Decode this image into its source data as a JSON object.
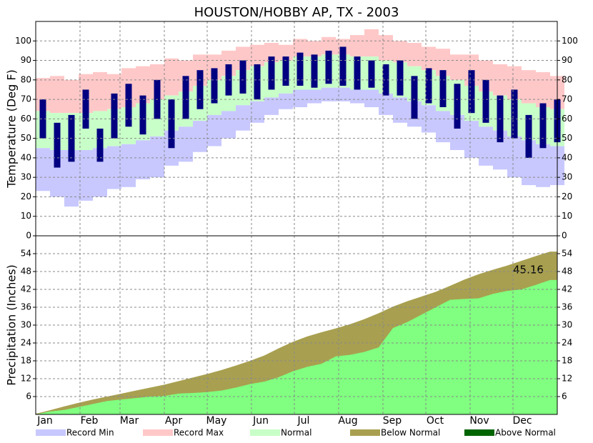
{
  "chart_data": [
    {
      "type": "range-bar",
      "title": "HOUSTON/HOBBY AP, TX - 2003",
      "ylabel": "Temperature (Deg F)",
      "x": [
        1,
        11,
        21,
        31,
        41,
        51,
        61,
        71,
        81,
        91,
        101,
        111,
        121,
        131,
        141,
        151,
        161,
        171,
        181,
        191,
        201,
        211,
        221,
        231,
        241,
        251,
        261,
        271,
        281,
        291,
        301,
        311,
        321,
        331,
        341,
        351,
        361
      ],
      "xlim": [
        1,
        366
      ],
      "xticks": [
        {
          "value": 1,
          "label": "Jan"
        },
        {
          "value": 32,
          "label": "Feb"
        },
        {
          "value": 60,
          "label": "Mar"
        },
        {
          "value": 91,
          "label": "Apr"
        },
        {
          "value": 121,
          "label": "May"
        },
        {
          "value": 152,
          "label": "Jun"
        },
        {
          "value": 182,
          "label": "Jul"
        },
        {
          "value": 213,
          "label": "Aug"
        },
        {
          "value": 244,
          "label": "Sep"
        },
        {
          "value": 274,
          "label": "Oct"
        },
        {
          "value": 305,
          "label": "Nov"
        },
        {
          "value": 335,
          "label": "Dec"
        }
      ],
      "ylim": [
        0,
        110
      ],
      "yticks": [
        0,
        10,
        20,
        30,
        40,
        50,
        60,
        70,
        80,
        90,
        100
      ],
      "grid": true,
      "series": [
        {
          "name": "Record Max",
          "color": "#ffc8c8",
          "low": [
            64,
            63,
            63,
            63,
            64,
            65,
            66,
            68,
            70,
            72,
            74,
            77,
            80,
            82,
            85,
            87,
            89,
            90,
            92,
            92,
            93,
            93,
            92,
            92,
            90,
            89,
            87,
            85,
            82,
            80,
            77,
            74,
            72,
            70,
            68,
            66,
            65
          ],
          "high": [
            81,
            82,
            80,
            83,
            84,
            83,
            86,
            87,
            88,
            91,
            90,
            93,
            93,
            95,
            97,
            98,
            99,
            98,
            101,
            100,
            102,
            101,
            103,
            106,
            103,
            100,
            99,
            97,
            96,
            93,
            93,
            90,
            88,
            87,
            85,
            84,
            82
          ]
        },
        {
          "name": "Normal",
          "color": "#c8ffc8",
          "low": [
            45,
            44,
            44,
            44,
            45,
            46,
            47,
            49,
            51,
            54,
            56,
            59,
            62,
            64,
            67,
            69,
            71,
            73,
            75,
            75,
            76,
            76,
            75,
            75,
            73,
            71,
            69,
            67,
            64,
            62,
            59,
            56,
            54,
            51,
            49,
            47,
            46
          ],
          "high": [
            64,
            63,
            63,
            63,
            64,
            65,
            66,
            68,
            70,
            72,
            74,
            77,
            80,
            82,
            85,
            87,
            89,
            90,
            92,
            92,
            93,
            93,
            92,
            92,
            90,
            89,
            87,
            85,
            82,
            80,
            77,
            74,
            72,
            70,
            68,
            66,
            65
          ]
        },
        {
          "name": "Record Min",
          "color": "#c8c8ff",
          "low": [
            23,
            20,
            15,
            18,
            20,
            24,
            25,
            29,
            30,
            36,
            38,
            43,
            46,
            50,
            54,
            58,
            62,
            65,
            66,
            68,
            69,
            69,
            68,
            66,
            62,
            58,
            56,
            53,
            48,
            44,
            40,
            36,
            34,
            30,
            26,
            25,
            26
          ],
          "high": [
            45,
            44,
            44,
            44,
            45,
            46,
            47,
            49,
            51,
            54,
            56,
            59,
            62,
            64,
            67,
            69,
            71,
            73,
            75,
            75,
            76,
            76,
            75,
            75,
            73,
            71,
            69,
            67,
            64,
            62,
            59,
            56,
            54,
            51,
            49,
            47,
            46
          ]
        },
        {
          "color": "#000080",
          "low": [
            50,
            35,
            38,
            55,
            38,
            50,
            56,
            52,
            60,
            45,
            60,
            65,
            68,
            72,
            73,
            70,
            75,
            77,
            77,
            76,
            78,
            77,
            75,
            76,
            72,
            72,
            60,
            68,
            66,
            55,
            63,
            58,
            48,
            50,
            40,
            45,
            48
          ],
          "high": [
            70,
            58,
            62,
            75,
            55,
            73,
            78,
            72,
            80,
            70,
            82,
            85,
            86,
            88,
            90,
            88,
            92,
            92,
            94,
            93,
            95,
            97,
            92,
            90,
            88,
            90,
            82,
            86,
            85,
            78,
            85,
            80,
            72,
            75,
            62,
            68,
            70
          ]
        }
      ]
    },
    {
      "type": "area",
      "ylabel": "Precipitation (Inches)",
      "ylim": [
        0,
        60
      ],
      "yticks": [
        6,
        12,
        18,
        24,
        30,
        36,
        42,
        48,
        54
      ],
      "grid": true,
      "annotation": "45.16",
      "series": [
        {
          "name": "Below Normal",
          "color": "#a8a050",
          "values": [
            0.2,
            1.4,
            2.7,
            3.9,
            5.0,
            6.0,
            7.0,
            8.0,
            9.0,
            10.0,
            11.2,
            12.4,
            13.6,
            14.9,
            16.4,
            18.0,
            19.8,
            22.2,
            24.4,
            26.2,
            27.6,
            28.9,
            30.3,
            32.0,
            34.0,
            36.2,
            38.0,
            39.6,
            41.2,
            43.2,
            45.3,
            47.1,
            48.6,
            50.0,
            51.6,
            53.2,
            54.7
          ]
        },
        {
          "color": "#80ff80",
          "values": [
            0.0,
            1.0,
            1.5,
            2.5,
            3.5,
            4.5,
            5.0,
            5.5,
            6.0,
            6.2,
            7.0,
            7.2,
            7.5,
            8.0,
            9.0,
            10.2,
            11.0,
            12.5,
            14.5,
            16.0,
            17.0,
            19.5,
            20.0,
            21.0,
            22.5,
            29.0,
            31.0,
            33.5,
            36.0,
            38.5,
            38.8,
            39.0,
            40.5,
            41.5,
            42.0,
            43.5,
            45.16
          ]
        }
      ]
    }
  ],
  "legend": [
    {
      "name": "Record Min",
      "color": "#c8c8ff"
    },
    {
      "name": "Record Max",
      "color": "#ffc8c8"
    },
    {
      "name": "Normal",
      "color": "#c8ffc8"
    },
    {
      "name": "Below Normal",
      "color": "#a8a050"
    },
    {
      "name": "Above Normal",
      "color": "#006400"
    }
  ]
}
